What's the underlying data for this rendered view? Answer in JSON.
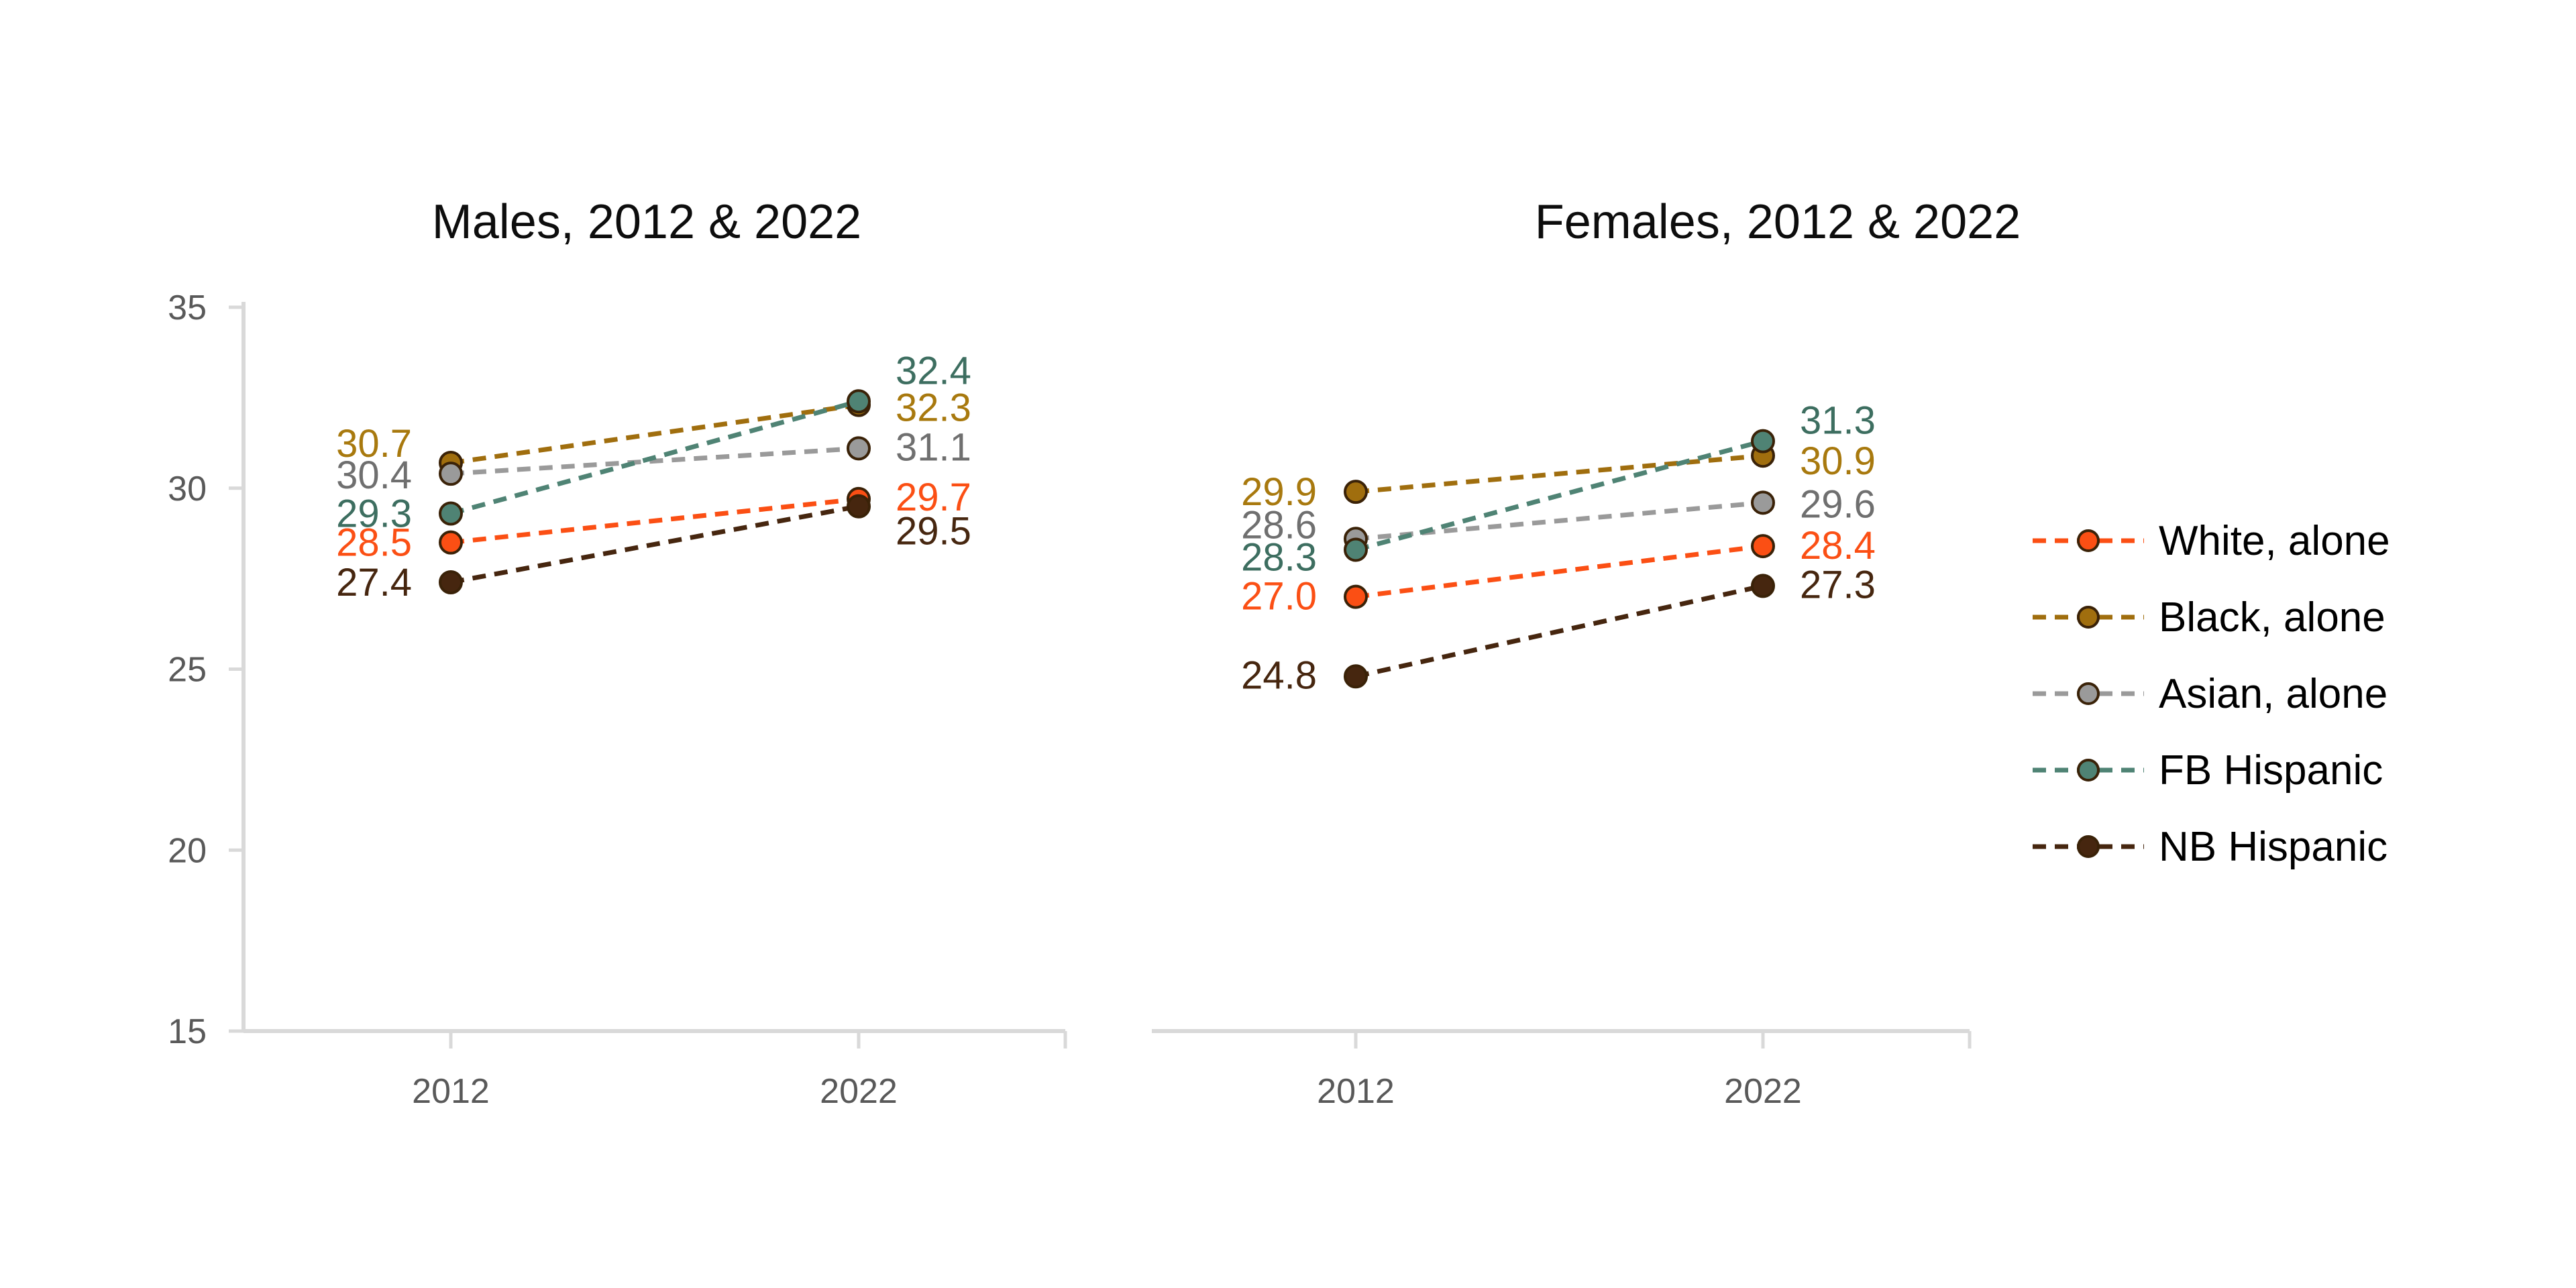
{
  "page": {
    "background": "#FFFFFF"
  },
  "axis": {
    "line_color": "#D9D9D9",
    "tick_label_color": "#595959"
  },
  "legend": {
    "position": "right",
    "marker_outline": "#3A2208",
    "items": [
      {
        "label": "White, alone",
        "color": "#FB4F14"
      },
      {
        "label": "Black, alone",
        "color": "#A06E0E"
      },
      {
        "label": "Asian, alone",
        "color": "#9A9A9A"
      },
      {
        "label": "FB Hispanic",
        "color": "#4F8374"
      },
      {
        "label": "NB Hispanic",
        "color": "#46260F"
      }
    ]
  },
  "chart_data": [
    {
      "type": "line",
      "title": "Males, 2012 & 2022",
      "categories": [
        "2012",
        "2022"
      ],
      "ylim": [
        15,
        35
      ],
      "yticks": [
        35,
        30,
        25,
        20,
        15
      ],
      "grid": false,
      "line_style": "dashed",
      "marker": "circle",
      "y_axis_visible": true,
      "series": [
        {
          "name": "White, alone",
          "color": "#FB4F14",
          "label_color": "#FB4F14",
          "values": [
            28.5,
            29.7
          ],
          "label_dy": [
            0,
            -3
          ]
        },
        {
          "name": "Black, alone",
          "color": "#A06E0E",
          "label_color": "#A8790E",
          "values": [
            30.7,
            32.3
          ],
          "label_dy": [
            -29,
            4
          ]
        },
        {
          "name": "Asian, alone",
          "color": "#9A9A9A",
          "label_color": "#6F6F6F",
          "values": [
            30.4,
            31.1
          ],
          "label_dy": [
            2,
            -2
          ]
        },
        {
          "name": "FB Hispanic",
          "color": "#4F8374",
          "label_color": "#3D6E60",
          "values": [
            29.3,
            32.4
          ],
          "label_dy": [
            0,
            -46
          ]
        },
        {
          "name": "NB Hispanic",
          "color": "#46260F",
          "label_color": "#46260F",
          "values": [
            27.4,
            29.5
          ],
          "label_dy": [
            0,
            37
          ]
        }
      ]
    },
    {
      "type": "line",
      "title": "Females, 2012 & 2022",
      "categories": [
        "2012",
        "2022"
      ],
      "ylim": [
        15,
        35
      ],
      "yticks": [
        35,
        30,
        25,
        20,
        15
      ],
      "grid": false,
      "line_style": "dashed",
      "marker": "circle",
      "y_axis_visible": false,
      "series": [
        {
          "name": "White, alone",
          "color": "#FB4F14",
          "label_color": "#FB4F14",
          "values": [
            27.0,
            28.4
          ],
          "label_dy": [
            -1,
            -1
          ]
        },
        {
          "name": "Black, alone",
          "color": "#A06E0E",
          "label_color": "#A8790E",
          "values": [
            29.9,
            30.9
          ],
          "label_dy": [
            0,
            8
          ]
        },
        {
          "name": "Asian, alone",
          "color": "#9A9A9A",
          "label_color": "#6F6F6F",
          "values": [
            28.6,
            29.6
          ],
          "label_dy": [
            -21,
            2
          ]
        },
        {
          "name": "FB Hispanic",
          "color": "#4F8374",
          "label_color": "#3D6E60",
          "values": [
            28.3,
            31.3
          ],
          "label_dy": [
            11,
            -31
          ]
        },
        {
          "name": "NB Hispanic",
          "color": "#46260F",
          "label_color": "#46260F",
          "values": [
            24.8,
            27.3
          ],
          "label_dy": [
            -2,
            -2
          ]
        }
      ]
    }
  ]
}
